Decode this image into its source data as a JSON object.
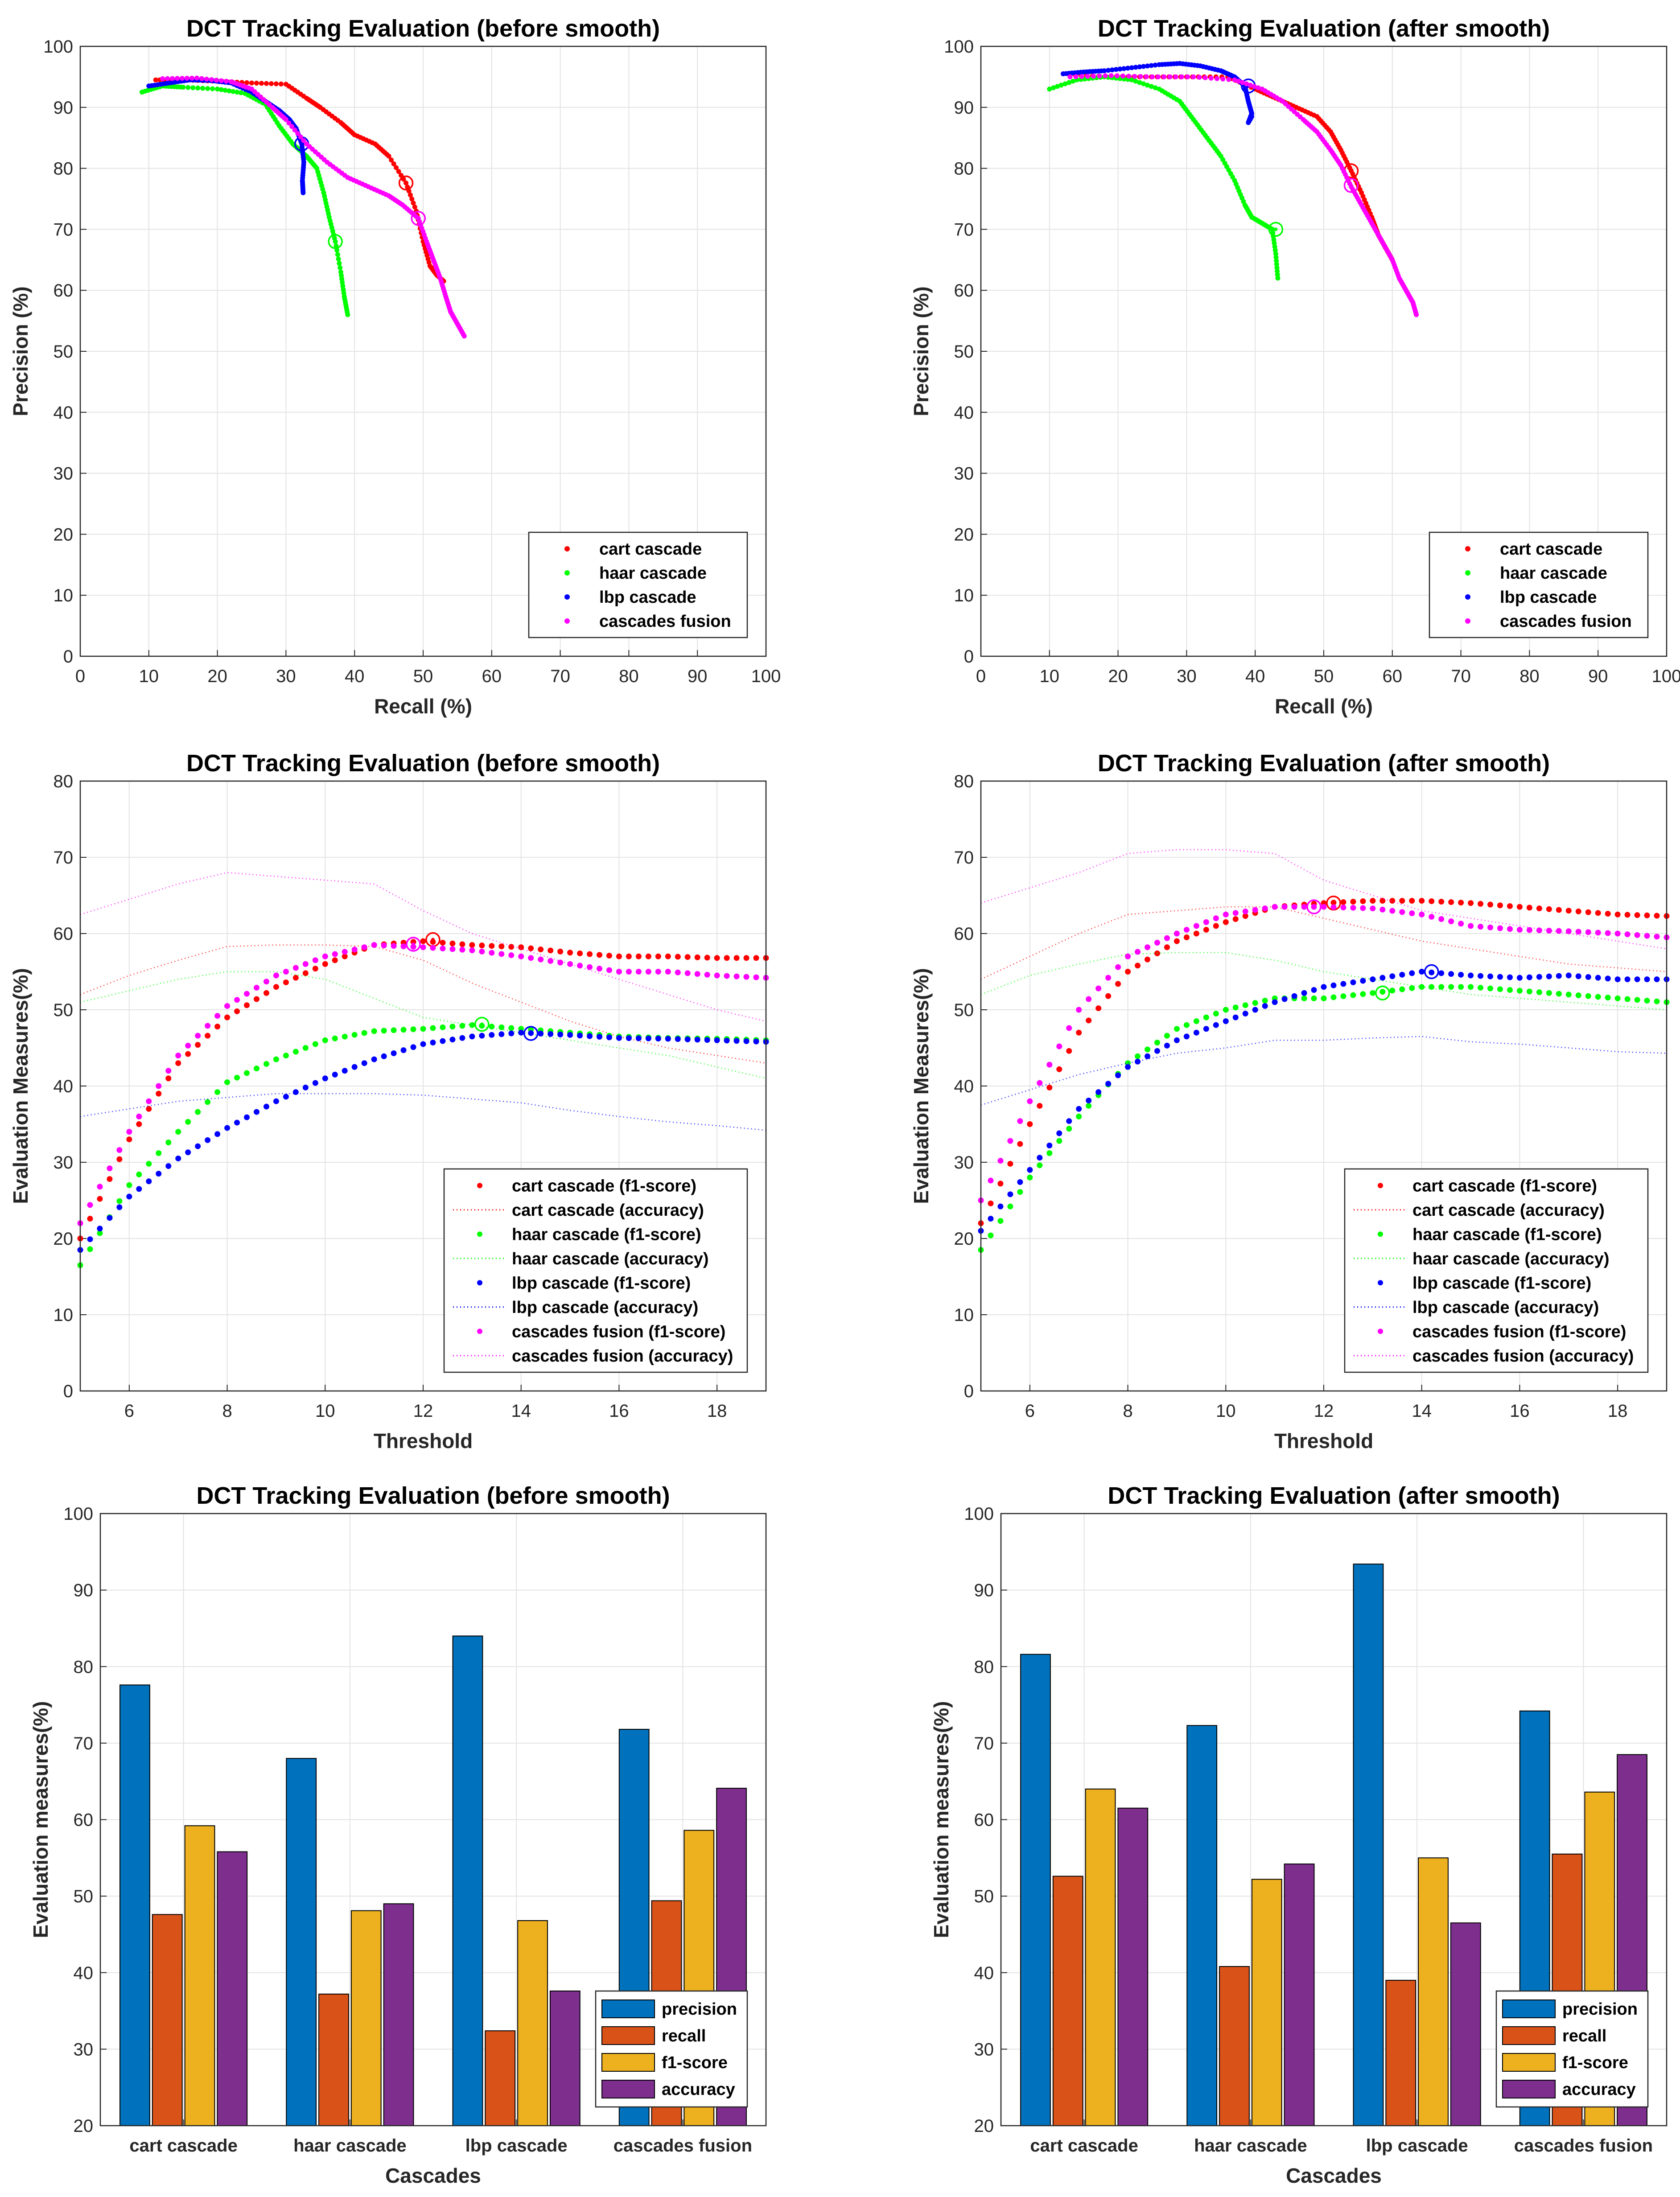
{
  "chart_data": [
    {
      "type": "scatter",
      "title": "DCT Tracking Evaluation (before smooth)",
      "xlabel": "Recall (%)",
      "ylabel": "Precision (%)",
      "xlim": [
        0,
        100
      ],
      "ylim": [
        0,
        100
      ],
      "xticks": [
        0,
        10,
        20,
        30,
        40,
        50,
        60,
        70,
        80,
        90,
        100
      ],
      "yticks": [
        0,
        10,
        20,
        30,
        40,
        50,
        60,
        70,
        80,
        90,
        100
      ],
      "grid": true,
      "legend": "bottom-right",
      "series": [
        {
          "name": "cart cascade",
          "color": "#ff0000",
          "x": [
            11,
            15,
            20,
            25,
            30,
            33,
            35,
            38,
            40,
            43,
            45,
            47.5,
            49,
            50,
            51,
            52,
            53
          ],
          "y": [
            94.5,
            94.5,
            94.3,
            94.0,
            93.8,
            91.5,
            90.0,
            87.5,
            85.5,
            84.0,
            82.0,
            77.6,
            73.0,
            68.0,
            64.0,
            62.5,
            61.5
          ],
          "marker": {
            "x": 47.5,
            "y": 77.6
          }
        },
        {
          "name": "haar cascade",
          "color": "#00ff00",
          "x": [
            9,
            12,
            15,
            20,
            24,
            27,
            29,
            31,
            33,
            34.5,
            35.5,
            36.3,
            37.2,
            38,
            38.5,
            39
          ],
          "y": [
            92.5,
            93.5,
            93.3,
            93.0,
            92.3,
            90.5,
            87.0,
            84.0,
            82.0,
            80.0,
            76.0,
            72.0,
            68.0,
            63.0,
            59.0,
            56.0
          ],
          "marker": {
            "x": 37.2,
            "y": 68.0
          }
        },
        {
          "name": "lbp cascade",
          "color": "#0000ff",
          "x": [
            10,
            13,
            16,
            19,
            22,
            25,
            27,
            29,
            30.5,
            31.5,
            32.3,
            32.6,
            32.4,
            32.5
          ],
          "y": [
            93.5,
            94.0,
            94.5,
            94.4,
            94.0,
            92.5,
            91.0,
            89.5,
            88.0,
            86.5,
            84.0,
            81.0,
            78.0,
            76.0
          ],
          "marker": {
            "x": 32.3,
            "y": 84.0
          }
        },
        {
          "name": "cascades fusion",
          "color": "#ff00ff",
          "x": [
            12,
            17,
            22,
            25,
            28,
            30,
            33,
            36,
            39,
            42,
            45,
            47,
            49.3,
            50.5,
            51.5,
            52.5,
            53.3,
            54,
            55,
            56
          ],
          "y": [
            94.7,
            94.8,
            94.2,
            93.0,
            90.0,
            88.0,
            84.0,
            81.0,
            78.5,
            77.0,
            75.5,
            74.0,
            71.8,
            68.0,
            65.0,
            62.0,
            59.0,
            56.5,
            54.5,
            52.5
          ],
          "marker": {
            "x": 49.3,
            "y": 71.8
          }
        }
      ]
    },
    {
      "type": "scatter",
      "title": "DCT Tracking Evaluation (after smooth)",
      "xlabel": "Recall (%)",
      "ylabel": "Precision (%)",
      "xlim": [
        0,
        100
      ],
      "ylim": [
        0,
        100
      ],
      "xticks": [
        0,
        10,
        20,
        30,
        40,
        50,
        60,
        70,
        80,
        90,
        100
      ],
      "yticks": [
        0,
        10,
        20,
        30,
        40,
        50,
        60,
        70,
        80,
        90,
        100
      ],
      "grid": true,
      "legend": "bottom-right",
      "series": [
        {
          "name": "cart cascade",
          "color": "#ff0000",
          "x": [
            12,
            18,
            24,
            30,
            36,
            40,
            43,
            46,
            49,
            51,
            52.5,
            54,
            55.5,
            57,
            58,
            59,
            60
          ],
          "y": [
            95.5,
            95.0,
            95.0,
            95.0,
            95.0,
            93.0,
            91.5,
            90.0,
            88.5,
            86.0,
            83.0,
            79.6,
            76.0,
            72.0,
            69.0,
            67.0,
            65.0
          ],
          "marker": {
            "x": 54.0,
            "y": 79.6
          }
        },
        {
          "name": "haar cascade",
          "color": "#00ff00",
          "x": [
            10,
            14,
            18,
            22,
            26,
            29,
            31,
            33,
            35,
            37,
            38.5,
            39.5,
            41,
            42.5,
            43,
            43.3
          ],
          "y": [
            93.0,
            94.5,
            95.0,
            94.5,
            93.0,
            91.0,
            88.0,
            85.0,
            82.0,
            78.0,
            74.0,
            72.0,
            71.0,
            70.0,
            66.0,
            62.0
          ],
          "marker": {
            "x": 43.0,
            "y": 70.0
          }
        },
        {
          "name": "lbp cascade",
          "color": "#0000ff",
          "x": [
            12,
            15,
            18,
            22,
            26,
            29,
            32,
            35,
            37,
            38.5,
            39,
            39.5,
            39,
            39.5
          ],
          "y": [
            95.5,
            95.8,
            96.0,
            96.5,
            97.0,
            97.2,
            96.8,
            96.0,
            95.0,
            93.5,
            91.0,
            89.0,
            87.5,
            88.5
          ],
          "marker": {
            "x": 39.0,
            "y": 93.5
          }
        },
        {
          "name": "cascades fusion",
          "color": "#ff00ff",
          "x": [
            13,
            19,
            25,
            31,
            37,
            41,
            44,
            47,
            49,
            51,
            52.5,
            54,
            55.5,
            57,
            58.5,
            60,
            61,
            62,
            63,
            63.5
          ],
          "y": [
            95.0,
            95.2,
            95.0,
            95.0,
            94.5,
            93.0,
            91.0,
            88.0,
            86.0,
            83.0,
            80.5,
            77.0,
            74.0,
            71.0,
            68.0,
            65.0,
            62.0,
            60.0,
            58.0,
            56.0
          ],
          "marker": {
            "x": 54.0,
            "y": 77.2
          }
        }
      ]
    },
    {
      "type": "line",
      "title": "DCT Tracking Evaluation (before smooth)",
      "xlabel": "Threshold",
      "ylabel": "Evaluation Measures(%)",
      "xlim": [
        5,
        19
      ],
      "ylim": [
        0,
        80
      ],
      "xticks": [
        6,
        8,
        10,
        12,
        14,
        16,
        18
      ],
      "yticks": [
        0,
        10,
        20,
        30,
        40,
        50,
        60,
        70,
        80
      ],
      "grid": true,
      "legend": "bottom-right",
      "x": [
        5,
        6,
        7,
        8,
        9,
        10,
        11,
        12,
        13,
        14,
        15,
        16,
        17,
        18,
        19
      ],
      "series": [
        {
          "name": "cart cascade (f1-score)",
          "color": "#ff0000",
          "style": "dots",
          "values": [
            20,
            33,
            43,
            49,
            53,
            56,
            58.5,
            59,
            58.5,
            58.2,
            57.5,
            57,
            57,
            56.8,
            56.8
          ],
          "marker": {
            "x": 12.2,
            "y": 59.2
          }
        },
        {
          "name": "cart cascade (accuracy)",
          "color": "#ff0000",
          "style": "dotted",
          "values": [
            52,
            54.5,
            56.5,
            58.3,
            58.5,
            58.5,
            58.3,
            56.5,
            53.5,
            51,
            48.5,
            46.5,
            45,
            44,
            43
          ]
        },
        {
          "name": "haar cascade (f1-score)",
          "color": "#00ff00",
          "style": "dots",
          "values": [
            16.5,
            27,
            34,
            40.5,
            43.5,
            46,
            47.2,
            47.5,
            48,
            47.5,
            47,
            46.5,
            46.3,
            46.2,
            46
          ],
          "marker": {
            "x": 13.2,
            "y": 48.1
          }
        },
        {
          "name": "haar cascade (accuracy)",
          "color": "#00ff00",
          "style": "dotted",
          "values": [
            51,
            52.5,
            54,
            55,
            55,
            54,
            51.5,
            49,
            48,
            47,
            46,
            45,
            44,
            42.5,
            41
          ]
        },
        {
          "name": "lbp cascade (f1-score)",
          "color": "#0000ff",
          "style": "dots",
          "values": [
            18.5,
            25.5,
            30.5,
            34.5,
            38,
            41,
            43.5,
            45.5,
            46.5,
            47,
            46.7,
            46.3,
            46.2,
            46,
            45.8
          ],
          "marker": {
            "x": 14.2,
            "y": 46.9
          }
        },
        {
          "name": "lbp cascade (accuracy)",
          "color": "#0000ff",
          "style": "dotted",
          "values": [
            36,
            37,
            38,
            38.5,
            39,
            39,
            39,
            38.8,
            38.3,
            37.8,
            36.8,
            36,
            35.3,
            34.8,
            34.2
          ]
        },
        {
          "name": "cascades fusion (f1-score)",
          "color": "#ff00ff",
          "style": "dots",
          "values": [
            22,
            34,
            44,
            50.5,
            54.5,
            57,
            58.5,
            58.2,
            57.8,
            57,
            56,
            55,
            55,
            54.5,
            54.2
          ],
          "marker": {
            "x": 11.8,
            "y": 58.6
          }
        },
        {
          "name": "cascades fusion (accuracy)",
          "color": "#ff00ff",
          "style": "dotted",
          "values": [
            62.5,
            64.5,
            66.5,
            68,
            67.5,
            67,
            66.5,
            63,
            60,
            58,
            56,
            54,
            52,
            50,
            48.5
          ]
        }
      ]
    },
    {
      "type": "line",
      "title": "DCT Tracking Evaluation (after smooth)",
      "xlabel": "Threshold",
      "ylabel": "Evaluation Measures(%)",
      "xlim": [
        5,
        19
      ],
      "ylim": [
        0,
        80
      ],
      "xticks": [
        6,
        8,
        10,
        12,
        14,
        16,
        18
      ],
      "yticks": [
        0,
        10,
        20,
        30,
        40,
        50,
        60,
        70,
        80
      ],
      "grid": true,
      "legend": "bottom-right",
      "x": [
        5,
        6,
        7,
        8,
        9,
        10,
        11,
        12,
        13,
        14,
        15,
        16,
        17,
        18,
        19
      ],
      "series": [
        {
          "name": "cart cascade (f1-score)",
          "color": "#ff0000",
          "style": "dots",
          "values": [
            22,
            35,
            47,
            55,
            59,
            61.5,
            63.5,
            64,
            64.3,
            64.3,
            64,
            63.5,
            63,
            62.5,
            62.3
          ],
          "marker": {
            "x": 12.2,
            "y": 64.0
          }
        },
        {
          "name": "cart cascade (accuracy)",
          "color": "#ff0000",
          "style": "dotted",
          "values": [
            54,
            57,
            60,
            62.5,
            63,
            63.5,
            63.5,
            62,
            60.5,
            59,
            58,
            57,
            56,
            55.5,
            55
          ]
        },
        {
          "name": "haar cascade (f1-score)",
          "color": "#00ff00",
          "style": "dots",
          "values": [
            18.5,
            28,
            36,
            43,
            47.5,
            50,
            51.5,
            51.5,
            52.2,
            53,
            53,
            52.5,
            52,
            51.5,
            51
          ],
          "marker": {
            "x": 13.2,
            "y": 52.2
          }
        },
        {
          "name": "haar cascade (accuracy)",
          "color": "#00ff00",
          "style": "dotted",
          "values": [
            52,
            54.5,
            56,
            57.3,
            57.5,
            57.5,
            56.5,
            55,
            54,
            53,
            52,
            51.5,
            51,
            50.5,
            50
          ]
        },
        {
          "name": "lbp cascade (f1-score)",
          "color": "#0000ff",
          "style": "dots",
          "values": [
            21,
            29,
            37,
            42.5,
            46,
            48.5,
            51,
            53,
            54,
            55,
            54.5,
            54.2,
            54.5,
            54,
            54
          ],
          "marker": {
            "x": 14.2,
            "y": 55.0
          }
        },
        {
          "name": "lbp cascade (accuracy)",
          "color": "#0000ff",
          "style": "dotted",
          "values": [
            37.5,
            39.5,
            41.5,
            43,
            44.3,
            45,
            46,
            46,
            46.3,
            46.5,
            45.8,
            45.5,
            45,
            44.5,
            44.3
          ]
        },
        {
          "name": "cascades fusion (f1-score)",
          "color": "#ff00ff",
          "style": "dots",
          "values": [
            25,
            38,
            50,
            57,
            60,
            62.5,
            63.5,
            63.5,
            63.3,
            62.5,
            61,
            60.5,
            60.3,
            60,
            59.5
          ],
          "marker": {
            "x": 11.8,
            "y": 63.5
          }
        },
        {
          "name": "cascades fusion (accuracy)",
          "color": "#ff00ff",
          "style": "dotted",
          "values": [
            64,
            66,
            68,
            70.5,
            71,
            71,
            70.5,
            67,
            65,
            63,
            62,
            61,
            60,
            59,
            58
          ]
        }
      ]
    },
    {
      "type": "bar",
      "title": "DCT Tracking Evaluation (before smooth)",
      "xlabel": "Cascades",
      "ylabel": "Evaluation measures(%)",
      "ylim": [
        20,
        100
      ],
      "yticks": [
        20,
        30,
        40,
        50,
        60,
        70,
        80,
        90,
        100
      ],
      "grid": true,
      "legend": "bottom-right",
      "categories": [
        "cart cascade",
        "haar cascade",
        "lbp cascade",
        "cascades fusion"
      ],
      "series": [
        {
          "name": "precision",
          "color": "#0072bd",
          "values": [
            77.6,
            68.0,
            84.0,
            71.8
          ]
        },
        {
          "name": "recall",
          "color": "#d95319",
          "values": [
            47.6,
            37.2,
            32.4,
            49.4
          ]
        },
        {
          "name": "f1-score",
          "color": "#edb120",
          "values": [
            59.2,
            48.1,
            46.8,
            58.6
          ]
        },
        {
          "name": "accuracy",
          "color": "#7e2f8e",
          "values": [
            55.8,
            49.0,
            37.6,
            64.1
          ]
        }
      ]
    },
    {
      "type": "bar",
      "title": "DCT Tracking Evaluation (after smooth)",
      "xlabel": "Cascades",
      "ylabel": "Evaluation measures(%)",
      "ylim": [
        20,
        100
      ],
      "yticks": [
        20,
        30,
        40,
        50,
        60,
        70,
        80,
        90,
        100
      ],
      "grid": true,
      "legend": "bottom-right",
      "categories": [
        "cart cascade",
        "haar cascade",
        "lbp cascade",
        "cascades fusion"
      ],
      "series": [
        {
          "name": "precision",
          "color": "#0072bd",
          "values": [
            81.6,
            72.3,
            93.4,
            74.2
          ]
        },
        {
          "name": "recall",
          "color": "#d95319",
          "values": [
            52.6,
            40.8,
            39.0,
            55.5
          ]
        },
        {
          "name": "f1-score",
          "color": "#edb120",
          "values": [
            64.0,
            52.2,
            55.0,
            63.6
          ]
        },
        {
          "name": "accuracy",
          "color": "#7e2f8e",
          "values": [
            61.5,
            54.2,
            46.5,
            68.5
          ]
        }
      ]
    }
  ]
}
